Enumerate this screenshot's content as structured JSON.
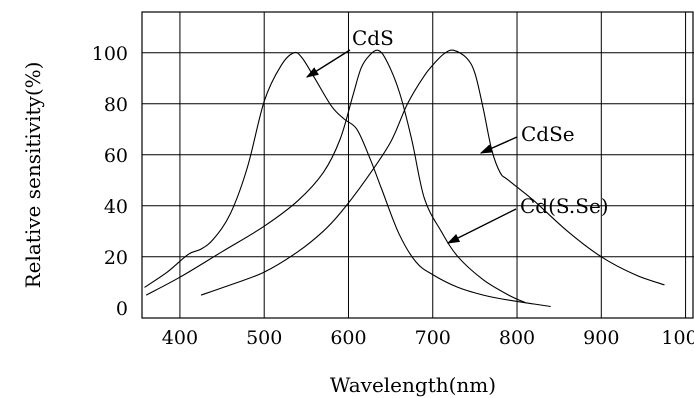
{
  "chart_data": {
    "type": "line",
    "title": "",
    "xlabel": "Wavelength(nm)",
    "ylabel": "Relative sensitivity(%)",
    "xlim": [
      355,
      1010
    ],
    "ylim": [
      -4,
      116
    ],
    "x_ticks": [
      "400",
      "500",
      "600",
      "700",
      "800",
      "900",
      "1000"
    ],
    "y_ticks": [
      "0",
      "20",
      "40",
      "60",
      "80",
      "100"
    ],
    "grid": true,
    "series": [
      {
        "name": "CdS",
        "x": [
          358,
          385,
          410,
          425,
          440,
          460,
          480,
          500,
          520,
          535,
          545,
          560,
          580,
          595,
          610,
          625,
          640,
          660,
          680,
          700,
          730,
          760,
          790,
          820,
          840
        ],
        "y": [
          8,
          14,
          21,
          23,
          27,
          37,
          55,
          81,
          95,
          100,
          98,
          90,
          79,
          74,
          70,
          59,
          46,
          29,
          18,
          13,
          8,
          5,
          3,
          1.5,
          0.5
        ]
      },
      {
        "name": "CdSe",
        "x": [
          360,
          400,
          450,
          500,
          540,
          570,
          590,
          605,
          615,
          625,
          635,
          645,
          660,
          675,
          690,
          710,
          730,
          760,
          790,
          810
        ],
        "y": [
          5,
          12,
          22,
          32,
          42,
          53,
          66,
          83,
          94,
          99,
          101,
          97,
          85,
          66,
          43,
          30,
          20,
          11,
          5,
          2
        ]
      },
      {
        "name": "Cd(S.Se)",
        "x": [
          425,
          460,
          500,
          540,
          570,
          590,
          620,
          650,
          670,
          690,
          705,
          715,
          725,
          740,
          750,
          760,
          770,
          780,
          790,
          820,
          860,
          900,
          940,
          975
        ],
        "y": [
          5,
          9,
          14,
          22,
          30,
          37,
          50,
          65,
          80,
          91,
          97,
          100,
          101,
          98,
          92,
          78,
          62,
          53,
          50,
          42,
          30,
          20,
          13,
          9
        ]
      }
    ],
    "annotations": [
      {
        "text": "CdS",
        "series": "CdS",
        "arrow_to_x": 545,
        "arrow_to_y": 98
      },
      {
        "text": "CdSe",
        "series": "CdSe",
        "arrow_to_x": 768,
        "arrow_to_y": 63
      },
      {
        "text": "Cd(S.Se)",
        "series": "Cd(S.Se)",
        "arrow_to_x": 681,
        "arrow_to_y": 14
      }
    ]
  }
}
